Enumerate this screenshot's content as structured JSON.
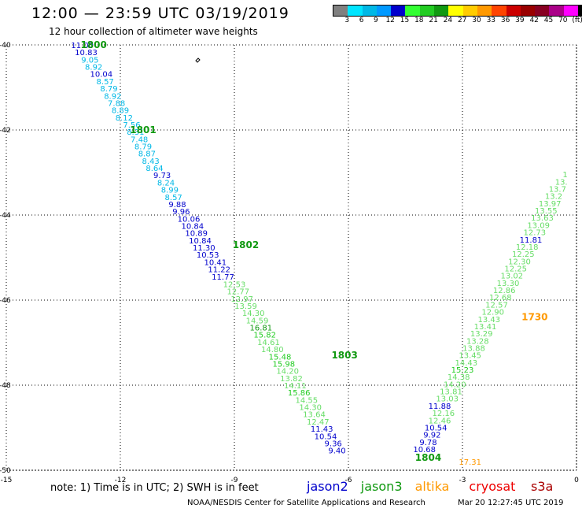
{
  "header": {
    "title": "12:00 — 23:59 UTC 03/19/2019",
    "subtitle": "12 hour collection of altimeter wave heights"
  },
  "legend": {
    "colors": [
      "#808080",
      "#00e5ff",
      "#00b8e6",
      "#0099ff",
      "#0000cc",
      "#33ff33",
      "#22cc22",
      "#119911",
      "#ffff00",
      "#ffcc00",
      "#ff9900",
      "#ff4400",
      "#cc0000",
      "#990000",
      "#880022",
      "#aa0088",
      "#ff00ff",
      "#000000"
    ],
    "labels": [
      "3",
      "6",
      "9",
      "12",
      "15",
      "18",
      "21",
      "24",
      "27",
      "30",
      "33",
      "36",
      "39",
      "42",
      "45",
      "70",
      "(ft)"
    ]
  },
  "axes": {
    "y_ticks": [
      "-40",
      "-42",
      "-44",
      "-46",
      "-48",
      "-50"
    ],
    "x_ticks": [
      "-15",
      "-12",
      "-9",
      "-6",
      "-3",
      "0"
    ]
  },
  "chart_data": {
    "type": "scatter",
    "xlim": [
      -15,
      0
    ],
    "ylim": [
      -50,
      -40
    ],
    "track_labels": [
      {
        "text": "1800",
        "x": -12.7,
        "y": -40.0,
        "color": "#119911"
      },
      {
        "text": "1801",
        "x": -11.4,
        "y": -42.0,
        "color": "#119911"
      },
      {
        "text": "1802",
        "x": -8.7,
        "y": -44.7,
        "color": "#119911"
      },
      {
        "text": "1803",
        "x": -6.1,
        "y": -47.3,
        "color": "#119911"
      },
      {
        "text": "1804",
        "x": -3.9,
        "y": -49.7,
        "color": "#119911"
      },
      {
        "text": "1730",
        "x": -1.1,
        "y": -46.4,
        "color": "#ff9900"
      }
    ],
    "series": [
      {
        "name": "track-a",
        "color": "#00b8e6",
        "points": [
          {
            "x": -13.0,
            "y": -40.0,
            "v": "11.00",
            "c": "#0000cc"
          },
          {
            "x": -12.9,
            "y": -40.17,
            "v": "10.83",
            "c": "#0000cc"
          },
          {
            "x": -12.8,
            "y": -40.34,
            "v": "9.05"
          },
          {
            "x": -12.7,
            "y": -40.51,
            "v": "8.92"
          },
          {
            "x": -12.5,
            "y": -40.68,
            "v": "10.04",
            "c": "#0000cc"
          },
          {
            "x": -12.4,
            "y": -40.85,
            "v": "8.57"
          },
          {
            "x": -12.3,
            "y": -41.02,
            "v": "8.79"
          },
          {
            "x": -12.2,
            "y": -41.19,
            "v": "8.92"
          },
          {
            "x": -12.1,
            "y": -41.36,
            "v": "7.88"
          },
          {
            "x": -12.0,
            "y": -41.53,
            "v": "8.89"
          },
          {
            "x": -11.9,
            "y": -41.7,
            "v": "8.12"
          },
          {
            "x": -11.7,
            "y": -41.87,
            "v": "7.56"
          },
          {
            "x": -11.6,
            "y": -42.04,
            "v": "8.31"
          },
          {
            "x": -11.5,
            "y": -42.21,
            "v": "7.48"
          },
          {
            "x": -11.4,
            "y": -42.38,
            "v": "8.79"
          },
          {
            "x": -11.3,
            "y": -42.55,
            "v": "8.87"
          },
          {
            "x": -11.2,
            "y": -42.72,
            "v": "8.43"
          },
          {
            "x": -11.1,
            "y": -42.89,
            "v": "8.64"
          },
          {
            "x": -10.9,
            "y": -43.06,
            "v": "9.73",
            "c": "#0000cc"
          },
          {
            "x": -10.8,
            "y": -43.23,
            "v": "8.24"
          },
          {
            "x": -10.7,
            "y": -43.4,
            "v": "8.99"
          },
          {
            "x": -10.6,
            "y": -43.57,
            "v": "8.57"
          },
          {
            "x": -10.5,
            "y": -43.74,
            "v": "9.88",
            "c": "#0000cc"
          },
          {
            "x": -10.4,
            "y": -43.91,
            "v": "9.96",
            "c": "#0000cc"
          },
          {
            "x": -10.2,
            "y": -44.08,
            "v": "10.06",
            "c": "#0000cc"
          },
          {
            "x": -10.1,
            "y": -44.25,
            "v": "10.84",
            "c": "#0000cc"
          },
          {
            "x": -10.0,
            "y": -44.42,
            "v": "10.89",
            "c": "#0000cc"
          },
          {
            "x": -9.9,
            "y": -44.59,
            "v": "10.84",
            "c": "#0000cc"
          },
          {
            "x": -9.8,
            "y": -44.76,
            "v": "11.30",
            "c": "#0000cc"
          },
          {
            "x": -9.7,
            "y": -44.93,
            "v": "10.53",
            "c": "#0000cc"
          },
          {
            "x": -9.5,
            "y": -45.1,
            "v": "10.41",
            "c": "#0000cc"
          },
          {
            "x": -9.4,
            "y": -45.27,
            "v": "11.22",
            "c": "#0000cc"
          },
          {
            "x": -9.3,
            "y": -45.44,
            "v": "11.77",
            "c": "#0000cc"
          },
          {
            "x": -9.0,
            "y": -45.62,
            "v": "12.53",
            "c": "#66dd66"
          },
          {
            "x": -8.9,
            "y": -45.79,
            "v": "12.77",
            "c": "#66dd66"
          },
          {
            "x": -8.8,
            "y": -45.96,
            "v": "12.97",
            "c": "#66dd66"
          },
          {
            "x": -8.7,
            "y": -46.13,
            "v": "13.59",
            "c": "#66dd66"
          },
          {
            "x": -8.5,
            "y": -46.3,
            "v": "14.30",
            "c": "#66dd66"
          },
          {
            "x": -8.4,
            "y": -46.47,
            "v": "14.59",
            "c": "#66dd66"
          },
          {
            "x": -8.3,
            "y": -46.64,
            "v": "16.81",
            "c": "#119911"
          },
          {
            "x": -8.2,
            "y": -46.81,
            "v": "15.82",
            "c": "#22cc22"
          },
          {
            "x": -8.1,
            "y": -46.98,
            "v": "14.61",
            "c": "#66dd66"
          },
          {
            "x": -8.0,
            "y": -47.15,
            "v": "14.80",
            "c": "#66dd66"
          },
          {
            "x": -7.8,
            "y": -47.32,
            "v": "15.48",
            "c": "#22cc22"
          },
          {
            "x": -7.7,
            "y": -47.49,
            "v": "15.98",
            "c": "#22cc22"
          },
          {
            "x": -7.6,
            "y": -47.66,
            "v": "14.20",
            "c": "#66dd66"
          },
          {
            "x": -7.5,
            "y": -47.83,
            "v": "13.82",
            "c": "#66dd66"
          },
          {
            "x": -7.4,
            "y": -48.0,
            "v": "14.11",
            "c": "#66dd66"
          },
          {
            "x": -7.3,
            "y": -48.17,
            "v": "15.86",
            "c": "#22cc22"
          },
          {
            "x": -7.1,
            "y": -48.34,
            "v": "14.55",
            "c": "#66dd66"
          },
          {
            "x": -7.0,
            "y": -48.51,
            "v": "14.30",
            "c": "#66dd66"
          },
          {
            "x": -6.9,
            "y": -48.68,
            "v": "13.64",
            "c": "#66dd66"
          },
          {
            "x": -6.8,
            "y": -48.85,
            "v": "12.47",
            "c": "#66dd66"
          },
          {
            "x": -6.7,
            "y": -49.02,
            "v": "11.43",
            "c": "#0000cc"
          },
          {
            "x": -6.6,
            "y": -49.19,
            "v": "10.54",
            "c": "#0000cc"
          },
          {
            "x": -6.4,
            "y": -49.36,
            "v": "9.36",
            "c": "#0000cc"
          },
          {
            "x": -6.3,
            "y": -49.53,
            "v": "9.40",
            "c": "#0000cc"
          }
        ]
      },
      {
        "name": "track-b",
        "color": "#66dd66",
        "points": [
          {
            "x": -4.0,
            "y": -49.5,
            "v": "10.68",
            "c": "#0000cc"
          },
          {
            "x": -3.9,
            "y": -49.33,
            "v": "9.78",
            "c": "#0000cc"
          },
          {
            "x": -3.8,
            "y": -49.16,
            "v": "9.92",
            "c": "#0000cc"
          },
          {
            "x": -3.7,
            "y": -48.99,
            "v": "10.54",
            "c": "#0000cc"
          },
          {
            "x": -3.6,
            "y": -48.82,
            "v": "12.46"
          },
          {
            "x": -3.5,
            "y": -48.65,
            "v": "12.16"
          },
          {
            "x": -3.6,
            "y": -48.48,
            "v": "11.88",
            "c": "#0000cc"
          },
          {
            "x": -3.4,
            "y": -48.31,
            "v": "13.03"
          },
          {
            "x": -3.3,
            "y": -48.14,
            "v": "13.81"
          },
          {
            "x": -3.2,
            "y": -47.97,
            "v": "14.20"
          },
          {
            "x": -3.1,
            "y": -47.8,
            "v": "14.38"
          },
          {
            "x": -3.0,
            "y": -47.63,
            "v": "15.23",
            "c": "#22cc22"
          },
          {
            "x": -2.9,
            "y": -47.46,
            "v": "14.43"
          },
          {
            "x": -2.8,
            "y": -47.29,
            "v": "13.45"
          },
          {
            "x": -2.7,
            "y": -47.12,
            "v": "13.88"
          },
          {
            "x": -2.6,
            "y": -46.95,
            "v": "13.28"
          },
          {
            "x": -2.5,
            "y": -46.78,
            "v": "13.29"
          },
          {
            "x": -2.4,
            "y": -46.61,
            "v": "13.41"
          },
          {
            "x": -2.3,
            "y": -46.44,
            "v": "13.43"
          },
          {
            "x": -2.2,
            "y": -46.27,
            "v": "12.90"
          },
          {
            "x": -2.1,
            "y": -46.1,
            "v": "12.57"
          },
          {
            "x": -2.0,
            "y": -45.93,
            "v": "12.68"
          },
          {
            "x": -1.9,
            "y": -45.76,
            "v": "12.86"
          },
          {
            "x": -1.8,
            "y": -45.59,
            "v": "13.30"
          },
          {
            "x": -1.7,
            "y": -45.42,
            "v": "13.02"
          },
          {
            "x": -1.6,
            "y": -45.25,
            "v": "12.25"
          },
          {
            "x": -1.5,
            "y": -45.08,
            "v": "12.30"
          },
          {
            "x": -1.4,
            "y": -44.91,
            "v": "12.25"
          },
          {
            "x": -1.3,
            "y": -44.74,
            "v": "12.18"
          },
          {
            "x": -1.2,
            "y": -44.57,
            "v": "11.81",
            "c": "#0000cc"
          },
          {
            "x": -1.1,
            "y": -44.4,
            "v": "12.73"
          },
          {
            "x": -1.0,
            "y": -44.23,
            "v": "13.09"
          },
          {
            "x": -0.9,
            "y": -44.06,
            "v": "13.63"
          },
          {
            "x": -0.8,
            "y": -43.89,
            "v": "13.55"
          },
          {
            "x": -0.7,
            "y": -43.72,
            "v": "13.97"
          },
          {
            "x": -0.6,
            "y": -43.55,
            "v": "13.2"
          },
          {
            "x": -0.5,
            "y": -43.38,
            "v": "13.7"
          },
          {
            "x": -0.4,
            "y": -43.21,
            "v": "13."
          },
          {
            "x": -0.3,
            "y": -43.04,
            "v": "1"
          }
        ]
      },
      {
        "name": "track-c",
        "color": "#ff9900",
        "points": [
          {
            "x": -2.8,
            "y": -49.8,
            "v": "17.31"
          }
        ]
      }
    ]
  },
  "footer": {
    "note": "note: 1) Time is in UTC; 2) SWH is in feet",
    "satellites": [
      {
        "name": "jason2",
        "color": "#0000cc"
      },
      {
        "name": "jason3",
        "color": "#119911"
      },
      {
        "name": "altika",
        "color": "#ff9900"
      },
      {
        "name": "cryosat",
        "color": "#ee0000"
      },
      {
        "name": "s3a",
        "color": "#aa0000"
      }
    ],
    "credit": "NOAA/NESDIS Center for Satellite Applications and Research",
    "timestamp": "Mar 20 12:27:45 UTC 2019"
  }
}
